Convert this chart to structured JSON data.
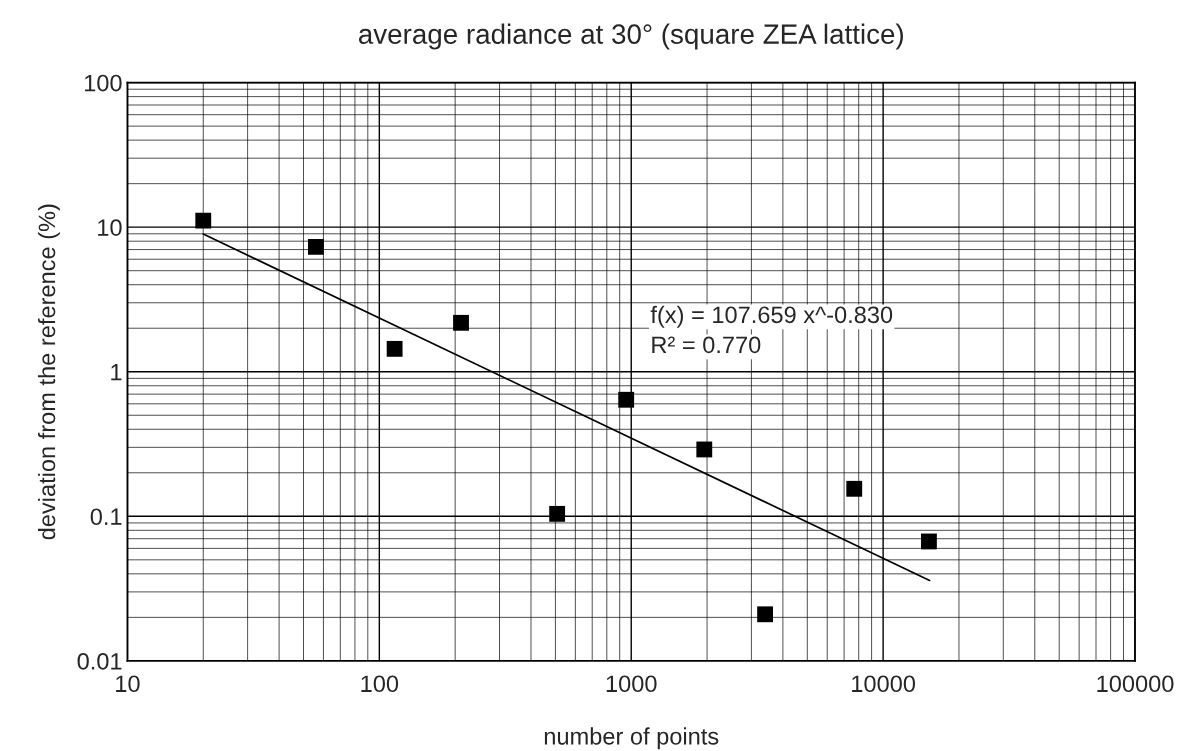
{
  "chart_data": {
    "type": "scatter",
    "title": "average radiance at 30° (square ZEA lattice)",
    "xlabel": "number of points",
    "ylabel": "deviation from the reference (%)",
    "log": "xy",
    "grid": true,
    "marker": "square",
    "legend": false,
    "xlim": [
      10,
      100000
    ],
    "xticks": [
      10,
      100,
      1000,
      10000,
      100000
    ],
    "ylim": [
      0.01,
      100
    ],
    "yticks": [
      0.01,
      0.1,
      1,
      10,
      100
    ],
    "series": [
      {
        "color": "#000000",
        "x": [
          20,
          56,
          115,
          211,
          508,
          955,
          1950,
          3400,
          7680,
          15200
        ],
        "values": [
          11.1,
          7.3,
          1.44,
          2.18,
          0.104,
          0.64,
          0.29,
          0.021,
          0.155,
          0.067
        ]
      },
      {
        "type": "line",
        "color": "#000000",
        "marker": "none",
        "x": [
          20,
          15300
        ],
        "values": [
          8.96,
          0.036
        ]
      }
    ],
    "annotations": [
      "f(x) = 107.659 x^-0.830",
      "R² = 0.770"
    ]
  }
}
